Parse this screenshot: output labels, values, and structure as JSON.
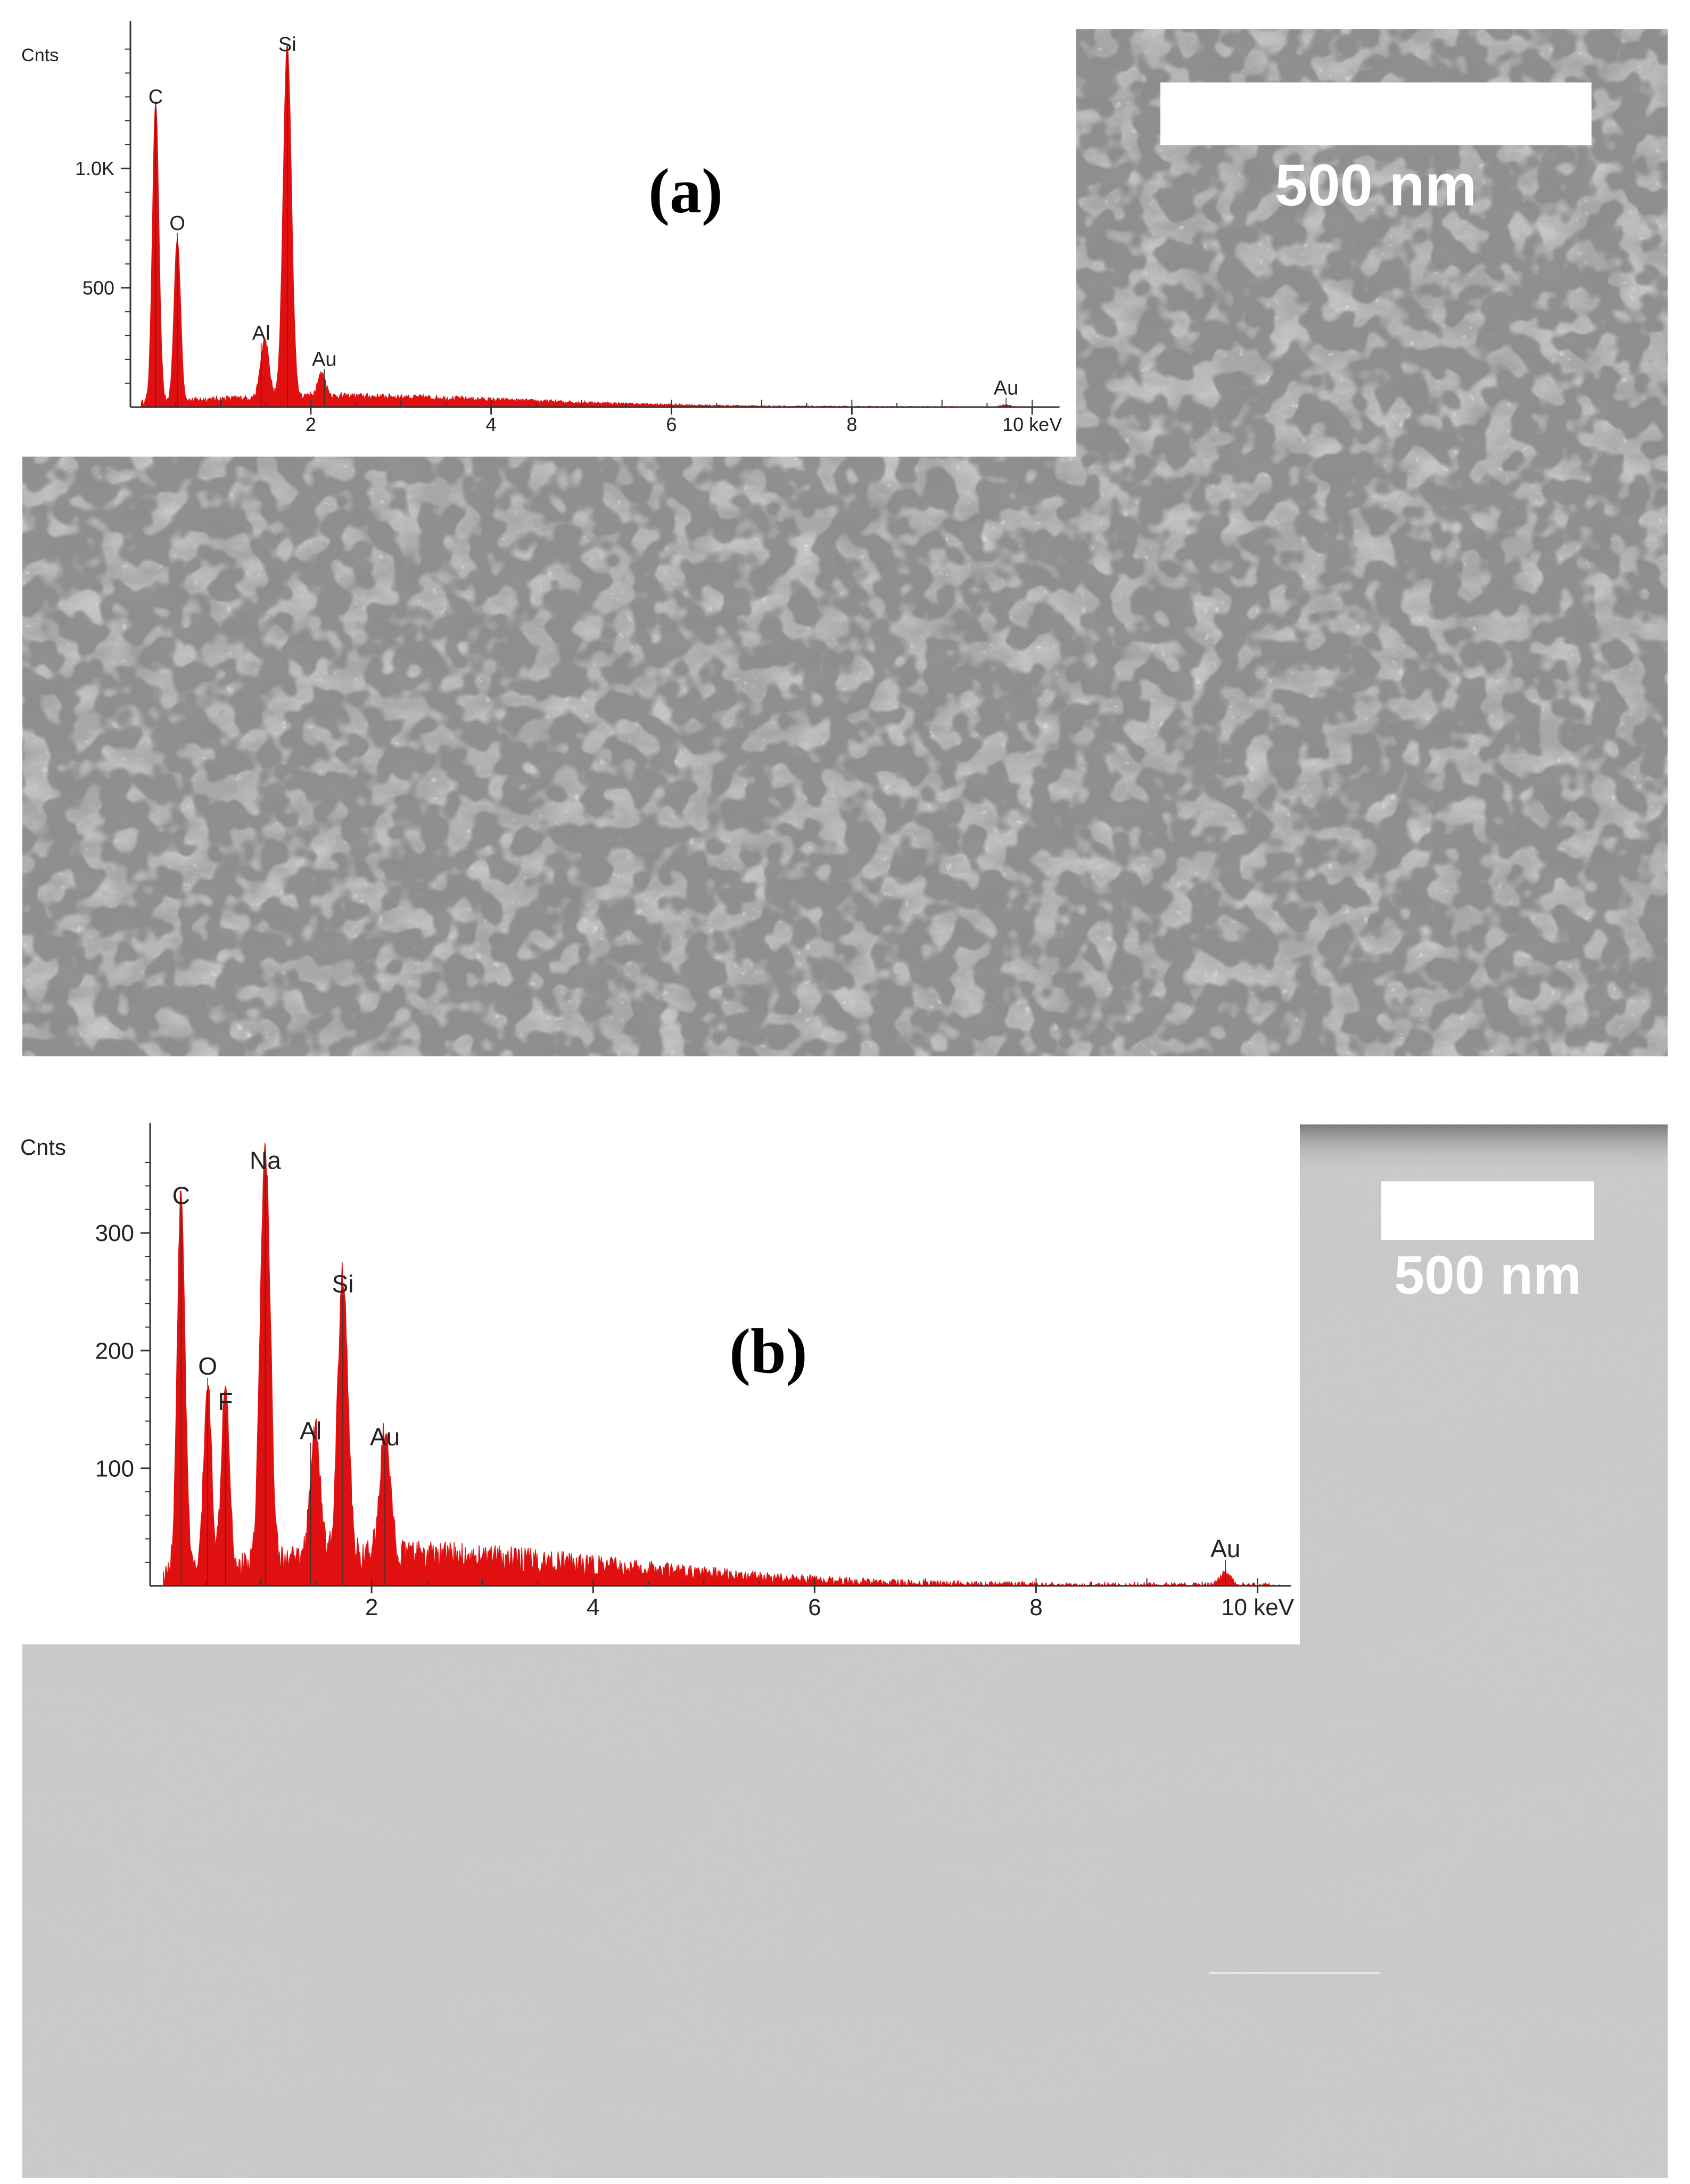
{
  "figure": {
    "panels": [
      {
        "label": "(a)",
        "scale_bar_text": "500 nm",
        "micrograph_texture": "fibrous-network-with-pores",
        "chart_data": {
          "type": "line",
          "title": "",
          "ylabel": "Cnts",
          "xlabel": "",
          "x_unit_label": "10 keV",
          "xlim": [
            0,
            10.3
          ],
          "ylim": [
            0,
            1550
          ],
          "x_ticks": [
            2,
            4,
            6,
            8,
            10
          ],
          "x_tick_labels": [
            "2",
            "4",
            "6",
            "8",
            "10 keV"
          ],
          "y_ticks": [
            500,
            1000
          ],
          "y_tick_labels": [
            "500",
            "1.0K"
          ],
          "series_color": "#e01010",
          "peaks": [
            {
              "element": "C",
              "x": 0.28,
              "y": 1250
            },
            {
              "element": "O",
              "x": 0.52,
              "y": 680
            },
            {
              "element": "Al",
              "x": 1.49,
              "y": 240
            },
            {
              "element": "Si",
              "x": 1.74,
              "y": 1470
            },
            {
              "element": "Au",
              "x": 2.12,
              "y": 95
            },
            {
              "element": "Au",
              "x": 9.71,
              "y": 10
            }
          ],
          "peak_labels": [
            {
              "text": "C",
              "x": 0.28,
              "y": 1250
            },
            {
              "text": "O",
              "x": 0.52,
              "y": 720
            },
            {
              "text": "Al",
              "x": 1.45,
              "y": 260
            },
            {
              "text": "Si",
              "x": 1.74,
              "y": 1470
            },
            {
              "text": "Au",
              "x": 2.15,
              "y": 150
            },
            {
              "text": "Au",
              "x": 9.71,
              "y": 30
            }
          ]
        }
      },
      {
        "label": "(b)",
        "scale_bar_text": "500 nm",
        "micrograph_texture": "smooth-granular",
        "chart_data": {
          "type": "line",
          "title": "",
          "ylabel": "Cnts",
          "xlabel": "",
          "x_unit_label": "10 keV",
          "xlim": [
            0,
            10.3
          ],
          "ylim": [
            0,
            380
          ],
          "x_ticks": [
            2,
            4,
            6,
            8,
            10
          ],
          "x_tick_labels": [
            "2",
            "4",
            "6",
            "8",
            "10 keV"
          ],
          "y_ticks": [
            100,
            200,
            300
          ],
          "y_tick_labels": [
            "100",
            "200",
            "300"
          ],
          "series_color": "#e01010",
          "peaks": [
            {
              "element": "C",
              "x": 0.28,
              "y": 320
            },
            {
              "element": "O",
              "x": 0.52,
              "y": 155
            },
            {
              "element": "F",
              "x": 0.68,
              "y": 160
            },
            {
              "element": "Na",
              "x": 1.04,
              "y": 350
            },
            {
              "element": "Al",
              "x": 1.49,
              "y": 110
            },
            {
              "element": "Si",
              "x": 1.74,
              "y": 240
            },
            {
              "element": "Au",
              "x": 2.12,
              "y": 105
            },
            {
              "element": "Au",
              "x": 9.71,
              "y": 12
            }
          ],
          "peak_labels": [
            {
              "text": "C",
              "x": 0.28,
              "y": 320
            },
            {
              "text": "O",
              "x": 0.52,
              "y": 175
            },
            {
              "text": "F",
              "x": 0.68,
              "y": 145
            },
            {
              "text": "Na",
              "x": 1.04,
              "y": 350
            },
            {
              "text": "Al",
              "x": 1.45,
              "y": 120
            },
            {
              "text": "Si",
              "x": 1.74,
              "y": 245
            },
            {
              "text": "Au",
              "x": 2.12,
              "y": 115
            },
            {
              "text": "Au",
              "x": 9.71,
              "y": 20
            }
          ]
        }
      }
    ]
  }
}
